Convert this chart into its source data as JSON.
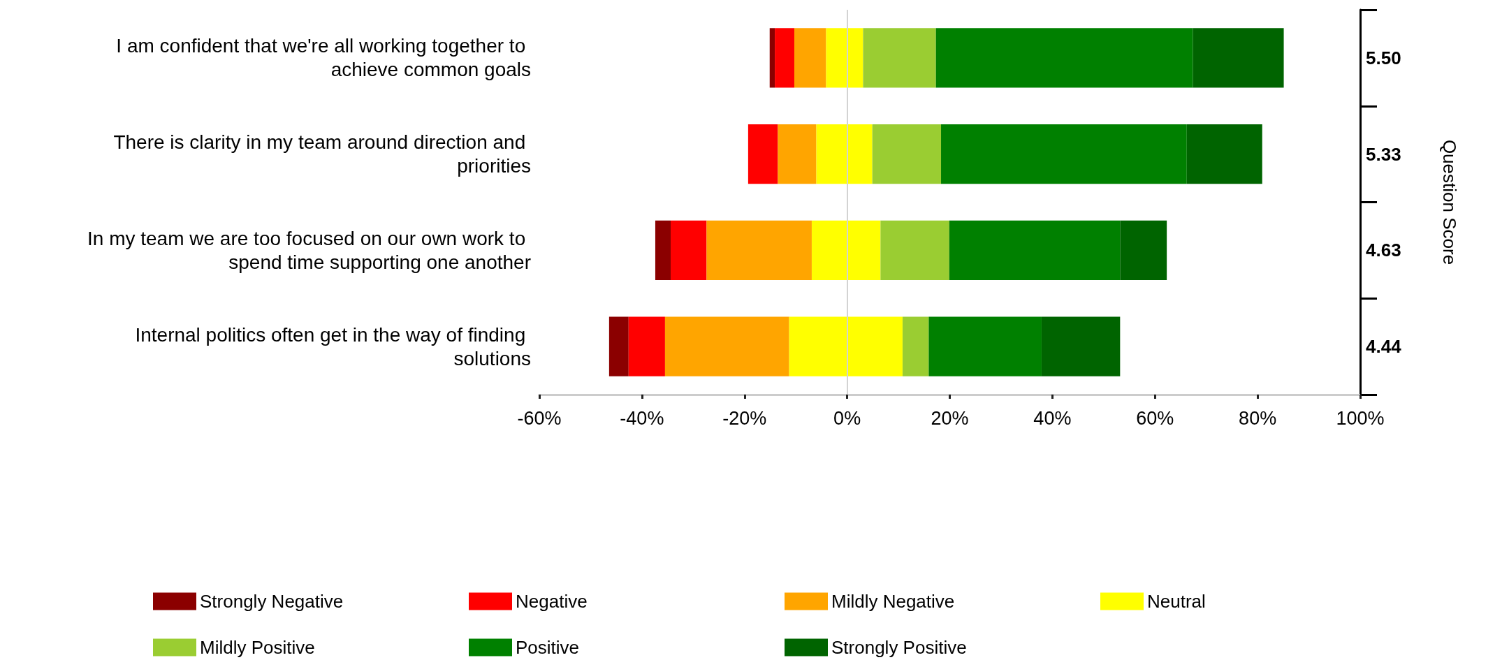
{
  "chart_data": {
    "type": "bar",
    "orientation": "horizontal",
    "categories": [
      "I am confident that we're all working together to achieve common goals",
      "There is clarity in my team around direction and priorities",
      "In my team we are too focused on our own work to spend time supporting one another",
      "Internal politics often get in the way of finding solutions"
    ],
    "y2_categories": [
      "5.50",
      "5.33",
      "4.63",
      "4.44"
    ],
    "y2label": "Question Score",
    "series": [
      {
        "name": "Strongly Negative",
        "color": "#8b0000",
        "base": [
          -15.1,
          null,
          -37.4,
          -46.4
        ],
        "values": [
          1,
          null,
          3,
          3.8
        ]
      },
      {
        "name": "Negative",
        "color": "#ff0000",
        "base": [
          -14.1,
          -19.3,
          -34.4,
          -42.6
        ],
        "values": [
          3.8,
          5.8,
          7,
          7.1
        ]
      },
      {
        "name": "Mildly Negative",
        "color": "#ffa500",
        "base": [
          -10.3,
          -13.5,
          -27.4,
          -35.5
        ],
        "values": [
          6.2,
          7.5,
          20.5,
          24.2
        ]
      },
      {
        "name": "Neutral",
        "color": "#ffff00",
        "base": [
          -4.1,
          -6,
          -6.9,
          -11.3
        ],
        "values": [
          7.2,
          10.9,
          13.4,
          22.1
        ]
      },
      {
        "name": "Mildly Positive",
        "color": "#9acd32",
        "base": [
          3.1,
          4.9,
          6.5,
          10.8
        ],
        "values": [
          14.2,
          13.4,
          13.4,
          5.1
        ]
      },
      {
        "name": "Positive",
        "color": "#008000",
        "base": [
          17.3,
          18.3,
          19.9,
          15.9
        ],
        "values": [
          50.1,
          47.9,
          33.3,
          22
        ]
      },
      {
        "name": "Strongly Positive",
        "color": "#006400",
        "base": [
          67.4,
          66.2,
          53.2,
          37.9
        ],
        "values": [
          17.7,
          14.7,
          9.1,
          15.3
        ]
      }
    ],
    "xlim": [
      -60,
      100
    ],
    "xticks": [
      {
        "value": -60,
        "label": "-60%"
      },
      {
        "value": -40,
        "label": "-40%"
      },
      {
        "value": -20,
        "label": "-20%"
      },
      {
        "value": 0,
        "label": "0%"
      },
      {
        "value": 20,
        "label": "20%"
      },
      {
        "value": 40,
        "label": "40%"
      },
      {
        "value": 60,
        "label": "60%"
      },
      {
        "value": 80,
        "label": "80%"
      },
      {
        "value": 100,
        "label": "100%"
      }
    ],
    "ref_lines": [
      {
        "axis": "x",
        "value": 0,
        "color": "#d3d3d3"
      }
    ],
    "legend": "bottom",
    "grid": false
  }
}
